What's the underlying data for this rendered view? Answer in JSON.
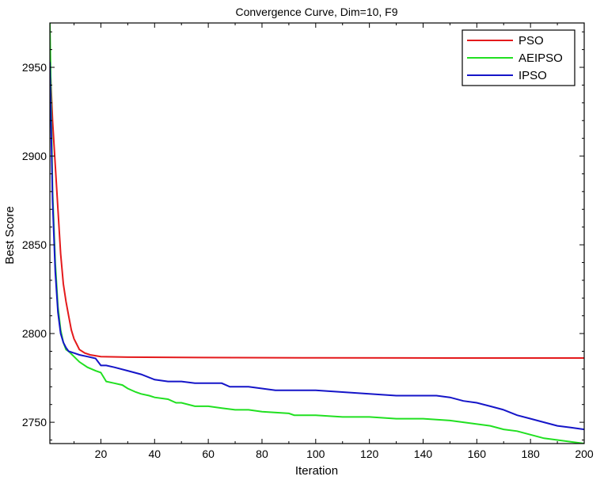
{
  "chart_data": {
    "type": "line",
    "title": "Convergence Curve, Dim=10, F9",
    "xlabel": "Iteration",
    "ylabel": "Best Score",
    "xlim": [
      1,
      200
    ],
    "ylim": [
      2738,
      2975
    ],
    "xticks": [
      20,
      40,
      60,
      80,
      100,
      120,
      140,
      160,
      180,
      200
    ],
    "yticks": [
      2750,
      2800,
      2850,
      2900,
      2950
    ],
    "grid": false,
    "legend_position": "top-right",
    "series": [
      {
        "name": "PSO",
        "color": "#e41a1c",
        "points": [
          [
            1,
            2955
          ],
          [
            2,
            2920
          ],
          [
            3,
            2895
          ],
          [
            4,
            2870
          ],
          [
            5,
            2845
          ],
          [
            6,
            2828
          ],
          [
            7,
            2818
          ],
          [
            8,
            2810
          ],
          [
            9,
            2802
          ],
          [
            10,
            2797
          ],
          [
            11,
            2794
          ],
          [
            12,
            2791
          ],
          [
            14,
            2789
          ],
          [
            16,
            2788
          ],
          [
            20,
            2787
          ],
          [
            30,
            2786.7
          ],
          [
            50,
            2786.5
          ],
          [
            100,
            2786.3
          ],
          [
            150,
            2786.2
          ],
          [
            200,
            2786.2
          ]
        ]
      },
      {
        "name": "AEIPSO",
        "color": "#21e021",
        "points": [
          [
            1,
            2975
          ],
          [
            2,
            2880
          ],
          [
            3,
            2840
          ],
          [
            4,
            2815
          ],
          [
            5,
            2802
          ],
          [
            6,
            2795
          ],
          [
            7,
            2791
          ],
          [
            8,
            2790
          ],
          [
            10,
            2787
          ],
          [
            12,
            2784
          ],
          [
            15,
            2781
          ],
          [
            18,
            2779
          ],
          [
            20,
            2778
          ],
          [
            22,
            2773
          ],
          [
            25,
            2772
          ],
          [
            28,
            2771
          ],
          [
            30,
            2769
          ],
          [
            33,
            2767
          ],
          [
            35,
            2766
          ],
          [
            38,
            2765
          ],
          [
            40,
            2764
          ],
          [
            45,
            2763
          ],
          [
            48,
            2761
          ],
          [
            50,
            2761
          ],
          [
            55,
            2759
          ],
          [
            60,
            2759
          ],
          [
            65,
            2758
          ],
          [
            70,
            2757
          ],
          [
            75,
            2757
          ],
          [
            80,
            2756
          ],
          [
            90,
            2755
          ],
          [
            92,
            2754
          ],
          [
            100,
            2754
          ],
          [
            110,
            2753
          ],
          [
            120,
            2753
          ],
          [
            130,
            2752
          ],
          [
            140,
            2752
          ],
          [
            150,
            2751
          ],
          [
            155,
            2750
          ],
          [
            160,
            2749
          ],
          [
            165,
            2748
          ],
          [
            170,
            2746
          ],
          [
            175,
            2745
          ],
          [
            180,
            2743
          ],
          [
            185,
            2741
          ],
          [
            190,
            2740
          ],
          [
            195,
            2739
          ],
          [
            200,
            2738
          ]
        ]
      },
      {
        "name": "IPSO",
        "color": "#1515c8",
        "points": [
          [
            1,
            2953
          ],
          [
            2,
            2875
          ],
          [
            3,
            2835
          ],
          [
            4,
            2812
          ],
          [
            5,
            2800
          ],
          [
            6,
            2795
          ],
          [
            7,
            2792
          ],
          [
            8,
            2790
          ],
          [
            10,
            2789
          ],
          [
            12,
            2788
          ],
          [
            15,
            2787
          ],
          [
            18,
            2786
          ],
          [
            20,
            2782
          ],
          [
            22,
            2782
          ],
          [
            25,
            2781
          ],
          [
            30,
            2779
          ],
          [
            35,
            2777
          ],
          [
            40,
            2774
          ],
          [
            45,
            2773
          ],
          [
            50,
            2773
          ],
          [
            55,
            2772
          ],
          [
            60,
            2772
          ],
          [
            65,
            2772
          ],
          [
            68,
            2770
          ],
          [
            75,
            2770
          ],
          [
            80,
            2769
          ],
          [
            85,
            2768
          ],
          [
            90,
            2768
          ],
          [
            100,
            2768
          ],
          [
            110,
            2767
          ],
          [
            120,
            2766
          ],
          [
            130,
            2765
          ],
          [
            140,
            2765
          ],
          [
            145,
            2765
          ],
          [
            150,
            2764
          ],
          [
            155,
            2762
          ],
          [
            160,
            2761
          ],
          [
            165,
            2759
          ],
          [
            170,
            2757
          ],
          [
            175,
            2754
          ],
          [
            180,
            2752
          ],
          [
            185,
            2750
          ],
          [
            190,
            2748
          ],
          [
            195,
            2747
          ],
          [
            200,
            2746
          ]
        ]
      }
    ]
  }
}
